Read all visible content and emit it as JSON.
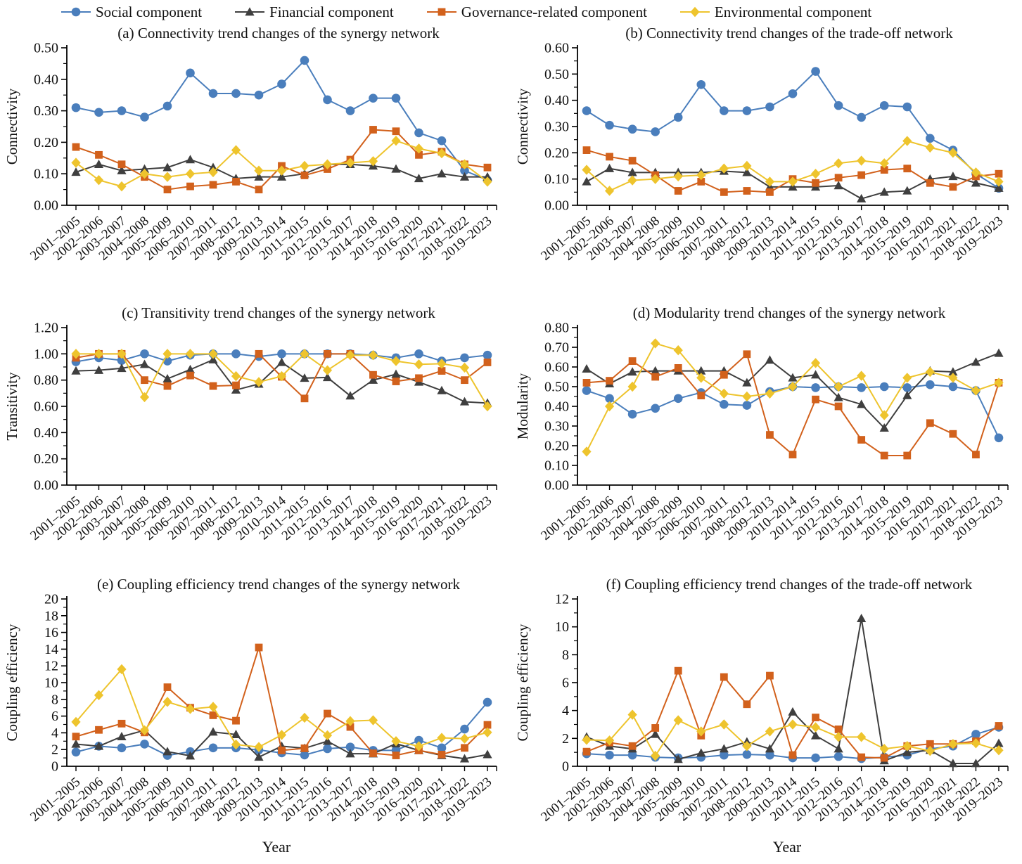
{
  "legend": {
    "items": [
      {
        "label": "Social component",
        "marker": "circle",
        "color": "#4a7ebc"
      },
      {
        "label": "Financial component",
        "marker": "triangle",
        "color": "#3f3f3f"
      },
      {
        "label": "Governance-related component",
        "marker": "square",
        "color": "#d2611c"
      },
      {
        "label": "Environmental component",
        "marker": "diamond",
        "color": "#eec42d"
      }
    ]
  },
  "chart_data": {
    "type": "line",
    "xlabel": "Year",
    "legend_position": "top",
    "grid": false,
    "categories": [
      "2001–2005",
      "2002–2006",
      "2003–2007",
      "2004–2008",
      "2005–2009",
      "2006–2010",
      "2007–2011",
      "2008–2012",
      "2009–2013",
      "2010–2014",
      "2011–2015",
      "2012–2016",
      "2013–2017",
      "2014–2018",
      "2015–2019",
      "2016–2020",
      "2017–2021",
      "2018–2022",
      "2019–2023"
    ],
    "charts": [
      {
        "title": "(a) Connectivity trend changes of the synergy network",
        "ylabel": "Connectivity",
        "ylim": [
          0,
          0.5
        ],
        "ystep": 0.1,
        "tick_decimals": 2,
        "series": [
          {
            "name": "Social component",
            "marker": "circle",
            "color": "#4a7ebc",
            "values": [
              0.31,
              0.295,
              0.3,
              0.28,
              0.315,
              0.42,
              0.355,
              0.355,
              0.35,
              0.385,
              0.46,
              0.335,
              0.3,
              0.34,
              0.34,
              0.23,
              0.205,
              0.11,
              0.08
            ]
          },
          {
            "name": "Financial component",
            "marker": "triangle",
            "color": "#3f3f3f",
            "values": [
              0.105,
              0.13,
              0.11,
              0.115,
              0.12,
              0.145,
              0.12,
              0.085,
              0.09,
              0.09,
              0.1,
              0.13,
              0.13,
              0.125,
              0.115,
              0.085,
              0.1,
              0.09,
              0.09
            ]
          },
          {
            "name": "Governance-related component",
            "marker": "square",
            "color": "#d2611c",
            "values": [
              0.185,
              0.16,
              0.13,
              0.09,
              0.05,
              0.06,
              0.065,
              0.075,
              0.05,
              0.125,
              0.095,
              0.115,
              0.145,
              0.24,
              0.235,
              0.16,
              0.17,
              0.13,
              0.12
            ]
          },
          {
            "name": "Environmental component",
            "marker": "diamond",
            "color": "#eec42d",
            "values": [
              0.135,
              0.08,
              0.06,
              0.1,
              0.09,
              0.1,
              0.105,
              0.175,
              0.11,
              0.11,
              0.125,
              0.13,
              0.135,
              0.14,
              0.205,
              0.18,
              0.165,
              0.13,
              0.075
            ]
          }
        ]
      },
      {
        "title": "(b) Connectivity trend changes of the trade-off network",
        "ylabel": "Connectivity",
        "ylim": [
          0,
          0.6
        ],
        "ystep": 0.1,
        "tick_decimals": 2,
        "series": [
          {
            "name": "Social component",
            "marker": "circle",
            "color": "#4a7ebc",
            "values": [
              0.36,
              0.305,
              0.29,
              0.28,
              0.335,
              0.46,
              0.36,
              0.36,
              0.375,
              0.425,
              0.51,
              0.38,
              0.335,
              0.38,
              0.375,
              0.255,
              0.21,
              0.12,
              0.065
            ]
          },
          {
            "name": "Financial component",
            "marker": "triangle",
            "color": "#3f3f3f",
            "values": [
              0.09,
              0.14,
              0.125,
              0.125,
              0.125,
              0.125,
              0.13,
              0.125,
              0.07,
              0.07,
              0.07,
              0.075,
              0.025,
              0.05,
              0.055,
              0.1,
              0.11,
              0.085,
              0.065
            ]
          },
          {
            "name": "Governance-related component",
            "marker": "square",
            "color": "#d2611c",
            "values": [
              0.21,
              0.185,
              0.17,
              0.115,
              0.055,
              0.09,
              0.05,
              0.055,
              0.05,
              0.1,
              0.085,
              0.105,
              0.115,
              0.135,
              0.14,
              0.085,
              0.07,
              0.11,
              0.12
            ]
          },
          {
            "name": "Environmental component",
            "marker": "diamond",
            "color": "#eec42d",
            "values": [
              0.135,
              0.055,
              0.095,
              0.1,
              0.11,
              0.115,
              0.14,
              0.15,
              0.09,
              0.09,
              0.12,
              0.16,
              0.17,
              0.16,
              0.245,
              0.22,
              0.2,
              0.125,
              0.09
            ]
          }
        ]
      },
      {
        "title": "(c) Transitivity trend changes of the synergy network",
        "ylabel": "Transitivity",
        "ylim": [
          0,
          1.2
        ],
        "ystep": 0.2,
        "tick_decimals": 2,
        "series": [
          {
            "name": "Social component",
            "marker": "circle",
            "color": "#4a7ebc",
            "values": [
              0.94,
              0.97,
              0.95,
              1.0,
              0.945,
              0.99,
              1.0,
              1.0,
              0.98,
              1.0,
              1.0,
              1.0,
              1.0,
              0.99,
              0.97,
              1.0,
              0.945,
              0.97,
              0.99
            ]
          },
          {
            "name": "Financial component",
            "marker": "triangle",
            "color": "#3f3f3f",
            "values": [
              0.87,
              0.875,
              0.89,
              0.92,
              0.81,
              0.88,
              0.955,
              0.725,
              0.77,
              0.935,
              0.815,
              0.82,
              0.68,
              0.8,
              0.845,
              0.785,
              0.72,
              0.635,
              0.625
            ]
          },
          {
            "name": "Governance-related component",
            "marker": "square",
            "color": "#d2611c",
            "values": [
              0.97,
              1.0,
              1.0,
              0.8,
              0.755,
              0.835,
              0.755,
              0.76,
              1.0,
              0.825,
              0.66,
              1.0,
              1.0,
              0.84,
              0.79,
              0.815,
              0.87,
              0.8,
              0.935
            ]
          },
          {
            "name": "Environmental component",
            "marker": "diamond",
            "color": "#eec42d",
            "values": [
              1.0,
              1.0,
              1.0,
              0.67,
              1.0,
              1.0,
              1.0,
              0.83,
              0.785,
              0.83,
              1.0,
              0.875,
              0.99,
              0.99,
              0.945,
              0.92,
              0.925,
              0.895,
              0.6
            ]
          }
        ]
      },
      {
        "title": "(d) Modularity trend changes of the synergy network",
        "ylabel": "Modularity",
        "ylim": [
          0,
          0.8
        ],
        "ystep": 0.1,
        "tick_decimals": 2,
        "series": [
          {
            "name": "Social component",
            "marker": "circle",
            "color": "#4a7ebc",
            "values": [
              0.48,
              0.44,
              0.36,
              0.39,
              0.44,
              0.47,
              0.41,
              0.405,
              0.475,
              0.5,
              0.495,
              0.5,
              0.495,
              0.5,
              0.495,
              0.51,
              0.5,
              0.48,
              0.24
            ]
          },
          {
            "name": "Financial component",
            "marker": "triangle",
            "color": "#3f3f3f",
            "values": [
              0.59,
              0.515,
              0.575,
              0.58,
              0.58,
              0.58,
              0.58,
              0.52,
              0.635,
              0.545,
              0.56,
              0.445,
              0.41,
              0.29,
              0.455,
              0.58,
              0.575,
              0.625,
              0.67
            ]
          },
          {
            "name": "Governance-related component",
            "marker": "square",
            "color": "#d2611c",
            "values": [
              0.52,
              0.53,
              0.63,
              0.55,
              0.595,
              0.455,
              0.56,
              0.665,
              0.255,
              0.155,
              0.435,
              0.4,
              0.23,
              0.15,
              0.15,
              0.315,
              0.26,
              0.155,
              0.52
            ]
          },
          {
            "name": "Environmental component",
            "marker": "diamond",
            "color": "#eec42d",
            "values": [
              0.17,
              0.4,
              0.5,
              0.72,
              0.685,
              0.545,
              0.465,
              0.45,
              0.465,
              0.5,
              0.62,
              0.5,
              0.555,
              0.355,
              0.545,
              0.575,
              0.545,
              0.48,
              0.52
            ]
          }
        ]
      },
      {
        "title": "(e) Coupling efficiency trend changes of the synergy network",
        "ylabel": "Coupling efficiency",
        "ylim": [
          0,
          20
        ],
        "ystep": 2,
        "tick_decimals": 0,
        "series": [
          {
            "name": "Social component",
            "marker": "circle",
            "color": "#4a7ebc",
            "values": [
              1.7,
              2.4,
              2.2,
              2.65,
              1.3,
              1.75,
              2.2,
              2.2,
              1.95,
              1.6,
              1.35,
              2.1,
              2.3,
              1.9,
              1.9,
              3.1,
              2.2,
              4.45,
              7.65
            ]
          },
          {
            "name": "Financial component",
            "marker": "triangle",
            "color": "#3f3f3f",
            "values": [
              2.65,
              2.4,
              3.55,
              4.3,
              1.75,
              1.25,
              4.1,
              3.8,
              1.1,
              2.4,
              2.15,
              3.0,
              1.5,
              1.5,
              2.7,
              1.9,
              1.3,
              0.9,
              1.4
            ]
          },
          {
            "name": "Governance-related component",
            "marker": "square",
            "color": "#d2611c",
            "values": [
              3.55,
              4.35,
              5.1,
              4.05,
              9.45,
              7.0,
              6.1,
              5.45,
              14.2,
              1.9,
              2.15,
              6.3,
              4.7,
              1.55,
              1.3,
              1.9,
              1.4,
              2.2,
              4.95
            ]
          },
          {
            "name": "Environmental component",
            "marker": "diamond",
            "color": "#eec42d",
            "values": [
              5.3,
              8.5,
              11.6,
              4.3,
              7.7,
              6.85,
              7.1,
              2.6,
              2.3,
              3.75,
              5.8,
              3.7,
              5.4,
              5.5,
              3.0,
              2.4,
              3.4,
              3.3,
              4.05
            ]
          }
        ]
      },
      {
        "title": "(f) Coupling efficiency trend changes of the trade-off network",
        "ylabel": "Coupling efficiency",
        "ylim": [
          0,
          12
        ],
        "ystep": 2,
        "tick_decimals": 0,
        "series": [
          {
            "name": "Social component",
            "marker": "circle",
            "color": "#4a7ebc",
            "values": [
              0.9,
              0.8,
              0.8,
              0.65,
              0.6,
              0.65,
              0.8,
              0.85,
              0.8,
              0.6,
              0.6,
              0.7,
              0.55,
              0.65,
              0.8,
              1.25,
              1.45,
              2.3,
              2.8
            ]
          },
          {
            "name": "Financial component",
            "marker": "triangle",
            "color": "#3f3f3f",
            "values": [
              2.1,
              1.45,
              1.25,
              2.3,
              0.5,
              0.95,
              1.25,
              1.75,
              1.25,
              3.9,
              2.2,
              1.25,
              10.6,
              0.4,
              1.0,
              1.15,
              0.2,
              0.2,
              1.65
            ]
          },
          {
            "name": "Governance-related component",
            "marker": "square",
            "color": "#d2611c",
            "values": [
              1.05,
              1.7,
              1.45,
              2.75,
              6.85,
              2.2,
              6.4,
              4.45,
              6.5,
              0.8,
              3.5,
              2.65,
              0.65,
              0.6,
              1.45,
              1.6,
              1.6,
              1.8,
              2.9
            ]
          },
          {
            "name": "Environmental component",
            "marker": "diamond",
            "color": "#eec42d",
            "values": [
              1.9,
              1.85,
              3.7,
              0.75,
              3.3,
              2.5,
              3.0,
              1.45,
              2.5,
              3.0,
              2.8,
              2.1,
              2.1,
              1.25,
              1.45,
              1.1,
              1.6,
              1.65,
              1.15
            ]
          }
        ]
      }
    ]
  }
}
